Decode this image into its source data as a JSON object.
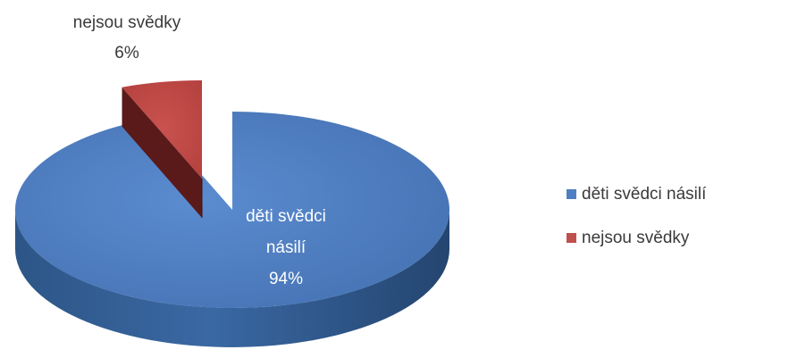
{
  "chart_data": {
    "type": "pie",
    "title": "",
    "categories": [
      "děti svědci násilí",
      "nejsou svědky"
    ],
    "values": [
      94,
      6
    ],
    "units": "%",
    "data_labels": [
      {
        "category": "děti svědci",
        "category_line2": "násilí",
        "value": "94%"
      },
      {
        "category": "nejsou svědky",
        "category_line2": "",
        "value": "6%"
      }
    ],
    "colors": [
      "#4f7fc2",
      "#c0504d"
    ],
    "exploded": [
      false,
      true
    ],
    "style": "3d",
    "legend_position": "right",
    "legend": [
      {
        "label": "děti svědci násilí",
        "color": "#4f7fc2"
      },
      {
        "label": "nejsou svědky",
        "color": "#c0504d"
      }
    ]
  }
}
